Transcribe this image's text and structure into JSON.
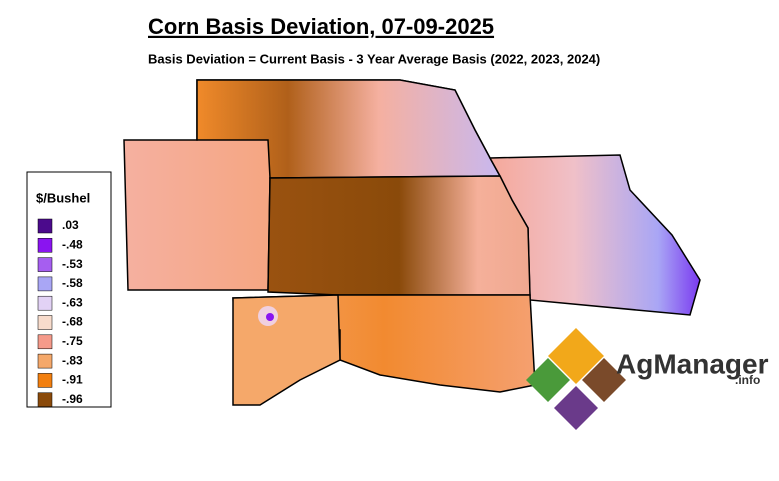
{
  "header": {
    "title": "Corn Basis Deviation, 07-09-2025",
    "subtitle": "Basis Deviation = Current Basis - 3 Year Average Basis (2022, 2023, 2024)"
  },
  "legend": {
    "title": "$/Bushel",
    "items": [
      {
        "label": ".03",
        "color": "#4b0a8c"
      },
      {
        "label": "-.48",
        "color": "#8a14f0"
      },
      {
        "label": "-.53",
        "color": "#a65ef0"
      },
      {
        "label": "-.58",
        "color": "#a9a6f5"
      },
      {
        "label": "-.63",
        "color": "#e2d2f5"
      },
      {
        "label": "-.68",
        "color": "#f8dccc"
      },
      {
        "label": "-.75",
        "color": "#f59a8a"
      },
      {
        "label": "-.83",
        "color": "#f5a86a"
      },
      {
        "label": "-.91",
        "color": "#f27f0f"
      },
      {
        "label": "-.96",
        "color": "#8a4a0a"
      }
    ]
  },
  "logo": {
    "name": "AgManager",
    "suffix": ".info"
  }
}
